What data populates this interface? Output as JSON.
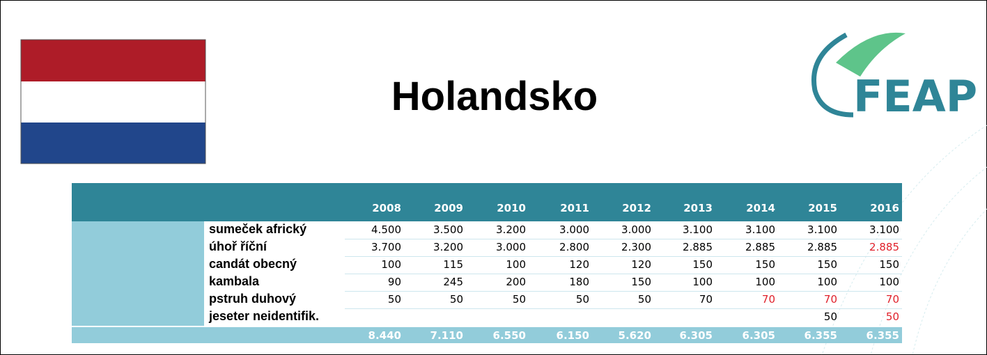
{
  "header": {
    "title": "Holandsko",
    "logo": "FEAP"
  },
  "table": {
    "years": [
      "2008",
      "2009",
      "2010",
      "2011",
      "2012",
      "2013",
      "2014",
      "2015",
      "2016"
    ],
    "rows": [
      {
        "name": "sumeček africký",
        "values": [
          "4.500",
          "3.500",
          "3.200",
          "3.000",
          "3.000",
          "3.100",
          "3.100",
          "3.100",
          "3.100"
        ],
        "colors": [
          "#000000",
          "#000000",
          "#000000",
          "#000000",
          "#000000",
          "#000000",
          "#000000",
          "#000000",
          "#000000"
        ]
      },
      {
        "name": "úhoř říční",
        "values": [
          "3.700",
          "3.200",
          "3.000",
          "2.800",
          "2.300",
          "2.885",
          "2.885",
          "2.885",
          "2.885"
        ],
        "colors": [
          "#000000",
          "#000000",
          "#000000",
          "#000000",
          "#000000",
          "#000000",
          "#000000",
          "#000000",
          "#e0202a"
        ]
      },
      {
        "name": "candát obecný",
        "values": [
          "100",
          "115",
          "100",
          "120",
          "120",
          "150",
          "150",
          "150",
          "150"
        ],
        "colors": [
          "#000000",
          "#000000",
          "#000000",
          "#000000",
          "#000000",
          "#000000",
          "#000000",
          "#000000",
          "#000000"
        ]
      },
      {
        "name": "kambala",
        "values": [
          "90",
          "245",
          "200",
          "180",
          "150",
          "100",
          "100",
          "100",
          "100"
        ],
        "colors": [
          "#000000",
          "#000000",
          "#000000",
          "#000000",
          "#000000",
          "#000000",
          "#000000",
          "#000000",
          "#000000"
        ]
      },
      {
        "name": "pstruh duhový",
        "values": [
          "50",
          "50",
          "50",
          "50",
          "50",
          "70",
          "70",
          "70",
          "70"
        ],
        "colors": [
          "#000000",
          "#000000",
          "#000000",
          "#000000",
          "#000000",
          "#000000",
          "#e0202a",
          "#e0202a",
          "#e0202a"
        ]
      },
      {
        "name": "jeseter neidentifik.",
        "values": [
          null,
          null,
          null,
          null,
          null,
          null,
          null,
          "50",
          "50"
        ],
        "colors": [
          "#000000",
          "#000000",
          "#000000",
          "#000000",
          "#000000",
          "#000000",
          "#000000",
          "#000000",
          "#e0202a"
        ]
      }
    ],
    "totals": [
      "8.440",
      "7.110",
      "6.550",
      "6.150",
      "5.620",
      "6.305",
      "6.305",
      "6.355",
      "6.355"
    ]
  }
}
